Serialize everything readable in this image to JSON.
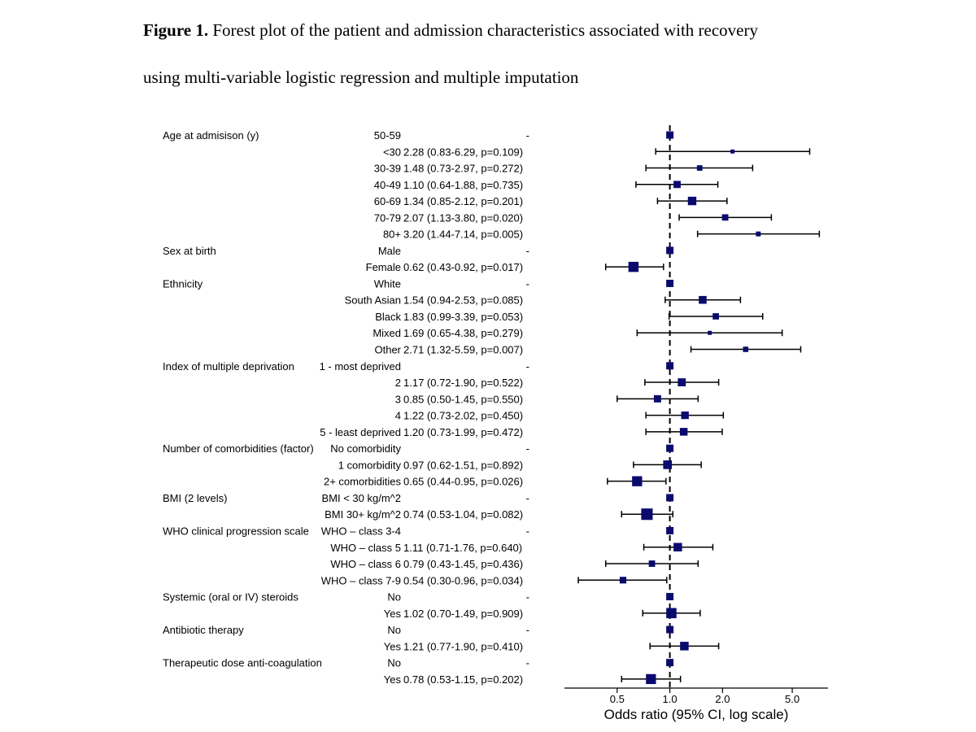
{
  "caption": {
    "label": "Figure 1.",
    "line1": "Forest plot of the patient and admission characteristics associated with recovery",
    "line2": "using multi-variable logistic regression and multiple imputation"
  },
  "colors": {
    "marker": "#0a0a6e",
    "line": "#000000",
    "reference_line": "#000000"
  },
  "chart_data": {
    "type": "forest",
    "title": "",
    "xlabel": "Odds ratio (95% CI, log scale)",
    "x_scale": "log",
    "xlim": [
      0.25,
      8.0
    ],
    "x_ticks": [
      0.5,
      1.0,
      2.0,
      5.0
    ],
    "x_tick_labels": [
      "0.5",
      "1.0",
      "2.0",
      "5.0"
    ],
    "reference_value": 1.0,
    "rows": [
      {
        "variable": "Age at admisison (y)",
        "level": "50-59",
        "estimate_text": "-",
        "or": 1.0,
        "lo": null,
        "hi": null,
        "ref": true
      },
      {
        "variable": "",
        "level": "<30",
        "estimate_text": "2.28 (0.83-6.29, p=0.109)",
        "or": 2.28,
        "lo": 0.83,
        "hi": 6.29
      },
      {
        "variable": "",
        "level": "30-39",
        "estimate_text": "1.48 (0.73-2.97, p=0.272)",
        "or": 1.48,
        "lo": 0.73,
        "hi": 2.97
      },
      {
        "variable": "",
        "level": "40-49",
        "estimate_text": "1.10 (0.64-1.88, p=0.735)",
        "or": 1.1,
        "lo": 0.64,
        "hi": 1.88
      },
      {
        "variable": "",
        "level": "60-69",
        "estimate_text": "1.34 (0.85-2.12, p=0.201)",
        "or": 1.34,
        "lo": 0.85,
        "hi": 2.12
      },
      {
        "variable": "",
        "level": "70-79",
        "estimate_text": "2.07 (1.13-3.80, p=0.020)",
        "or": 2.07,
        "lo": 1.13,
        "hi": 3.8
      },
      {
        "variable": "",
        "level": "80+",
        "estimate_text": "3.20 (1.44-7.14, p=0.005)",
        "or": 3.2,
        "lo": 1.44,
        "hi": 7.14
      },
      {
        "variable": "Sex at birth",
        "level": "Male",
        "estimate_text": "-",
        "or": 1.0,
        "lo": null,
        "hi": null,
        "ref": true
      },
      {
        "variable": "",
        "level": "Female",
        "estimate_text": "0.62 (0.43-0.92, p=0.017)",
        "or": 0.62,
        "lo": 0.43,
        "hi": 0.92
      },
      {
        "variable": "Ethnicity",
        "level": "White",
        "estimate_text": "-",
        "or": 1.0,
        "lo": null,
        "hi": null,
        "ref": true
      },
      {
        "variable": "",
        "level": "South Asian",
        "estimate_text": "1.54 (0.94-2.53, p=0.085)",
        "or": 1.54,
        "lo": 0.94,
        "hi": 2.53
      },
      {
        "variable": "",
        "level": "Black",
        "estimate_text": "1.83 (0.99-3.39, p=0.053)",
        "or": 1.83,
        "lo": 0.99,
        "hi": 3.39
      },
      {
        "variable": "",
        "level": "Mixed",
        "estimate_text": "1.69 (0.65-4.38, p=0.279)",
        "or": 1.69,
        "lo": 0.65,
        "hi": 4.38
      },
      {
        "variable": "",
        "level": "Other",
        "estimate_text": "2.71 (1.32-5.59, p=0.007)",
        "or": 2.71,
        "lo": 1.32,
        "hi": 5.59
      },
      {
        "variable": "Index of multiple deprivation",
        "level": "1 - most deprived",
        "estimate_text": "-",
        "or": 1.0,
        "lo": null,
        "hi": null,
        "ref": true
      },
      {
        "variable": "",
        "level": "2",
        "estimate_text": "1.17 (0.72-1.90, p=0.522)",
        "or": 1.17,
        "lo": 0.72,
        "hi": 1.9
      },
      {
        "variable": "",
        "level": "3",
        "estimate_text": "0.85 (0.50-1.45, p=0.550)",
        "or": 0.85,
        "lo": 0.5,
        "hi": 1.45
      },
      {
        "variable": "",
        "level": "4",
        "estimate_text": "1.22 (0.73-2.02, p=0.450)",
        "or": 1.22,
        "lo": 0.73,
        "hi": 2.02
      },
      {
        "variable": "",
        "level": "5 - least deprived",
        "estimate_text": "1.20 (0.73-1.99, p=0.472)",
        "or": 1.2,
        "lo": 0.73,
        "hi": 1.99
      },
      {
        "variable": "Number of comorbidities (factor)",
        "level": "No comorbidity",
        "estimate_text": "-",
        "or": 1.0,
        "lo": null,
        "hi": null,
        "ref": true
      },
      {
        "variable": "",
        "level": "1 comorbidity",
        "estimate_text": "0.97 (0.62-1.51, p=0.892)",
        "or": 0.97,
        "lo": 0.62,
        "hi": 1.51
      },
      {
        "variable": "",
        "level": "2+ comorbidities",
        "estimate_text": "0.65 (0.44-0.95, p=0.026)",
        "or": 0.65,
        "lo": 0.44,
        "hi": 0.95
      },
      {
        "variable": "BMI (2 levels)",
        "level": "BMI < 30 kg/m^2",
        "estimate_text": "-",
        "or": 1.0,
        "lo": null,
        "hi": null,
        "ref": true
      },
      {
        "variable": "",
        "level": "BMI 30+ kg/m^2",
        "estimate_text": "0.74 (0.53-1.04, p=0.082)",
        "or": 0.74,
        "lo": 0.53,
        "hi": 1.04
      },
      {
        "variable": "WHO clinical progression scale",
        "level": "WHO – class 3-4",
        "estimate_text": "-",
        "or": 1.0,
        "lo": null,
        "hi": null,
        "ref": true
      },
      {
        "variable": "",
        "level": "WHO – class 5",
        "estimate_text": "1.11 (0.71-1.76, p=0.640)",
        "or": 1.11,
        "lo": 0.71,
        "hi": 1.76
      },
      {
        "variable": "",
        "level": "WHO – class 6",
        "estimate_text": "0.79 (0.43-1.45, p=0.436)",
        "or": 0.79,
        "lo": 0.43,
        "hi": 1.45
      },
      {
        "variable": "",
        "level": "WHO – class 7-9",
        "estimate_text": "0.54 (0.30-0.96, p=0.034)",
        "or": 0.54,
        "lo": 0.3,
        "hi": 0.96
      },
      {
        "variable": "Systemic (oral or IV) steroids",
        "level": "No",
        "estimate_text": "-",
        "or": 1.0,
        "lo": null,
        "hi": null,
        "ref": true
      },
      {
        "variable": "",
        "level": "Yes",
        "estimate_text": "1.02 (0.70-1.49, p=0.909)",
        "or": 1.02,
        "lo": 0.7,
        "hi": 1.49
      },
      {
        "variable": "Antibiotic therapy",
        "level": "No",
        "estimate_text": "-",
        "or": 1.0,
        "lo": null,
        "hi": null,
        "ref": true
      },
      {
        "variable": "",
        "level": "Yes",
        "estimate_text": "1.21 (0.77-1.90, p=0.410)",
        "or": 1.21,
        "lo": 0.77,
        "hi": 1.9
      },
      {
        "variable": "Therapeutic dose anti-coagulation",
        "level": "No",
        "estimate_text": "-",
        "or": 1.0,
        "lo": null,
        "hi": null,
        "ref": true
      },
      {
        "variable": "",
        "level": "Yes",
        "estimate_text": "0.78 (0.53-1.15, p=0.202)",
        "or": 0.78,
        "lo": 0.53,
        "hi": 1.15
      }
    ]
  }
}
